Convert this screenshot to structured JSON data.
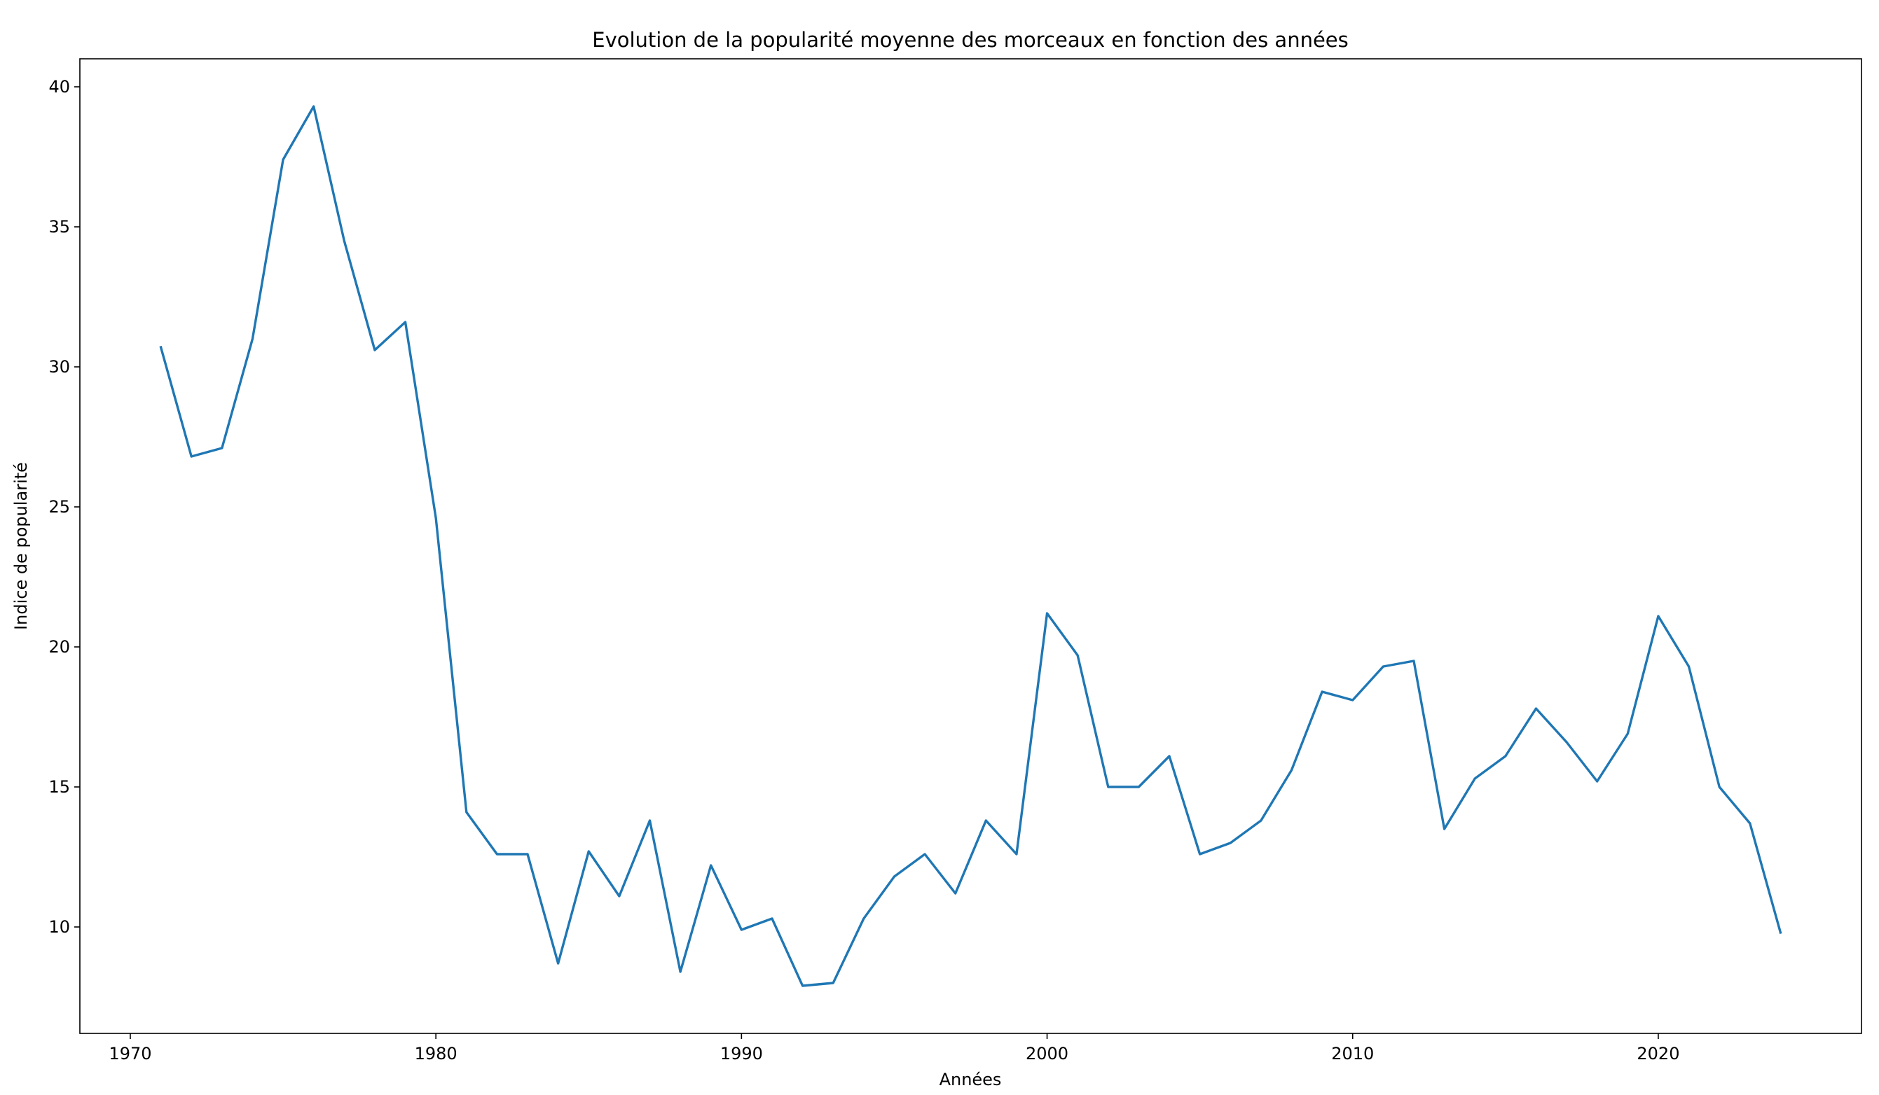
{
  "chart_data": {
    "type": "line",
    "title": "Evolution de la popularité moyenne des morceaux en fonction des années",
    "xlabel": "Années",
    "ylabel": "Indice de popularité",
    "xlim": [
      1968.35,
      2026.65
    ],
    "ylim": [
      6.2,
      41.0
    ],
    "x_ticks": [
      1970,
      1980,
      1990,
      2000,
      2010,
      2020
    ],
    "y_ticks": [
      10,
      15,
      20,
      25,
      30,
      35,
      40
    ],
    "grid": false,
    "legend": "none",
    "series": [
      {
        "color": "#1f77b4",
        "x": [
          1971,
          1972,
          1973,
          1974,
          1975,
          1976,
          1977,
          1978,
          1979,
          1980,
          1981,
          1982,
          1983,
          1984,
          1985,
          1986,
          1987,
          1988,
          1989,
          1990,
          1991,
          1992,
          1993,
          1994,
          1995,
          1996,
          1997,
          1998,
          1999,
          2000,
          2001,
          2002,
          2003,
          2004,
          2005,
          2006,
          2007,
          2008,
          2009,
          2010,
          2011,
          2012,
          2013,
          2014,
          2015,
          2016,
          2017,
          2018,
          2019,
          2020,
          2021,
          2022,
          2023,
          2024
        ],
        "values": [
          30.7,
          26.8,
          27.1,
          31.0,
          37.4,
          39.3,
          34.5,
          30.6,
          31.6,
          24.6,
          14.1,
          12.6,
          12.6,
          8.7,
          12.7,
          11.1,
          13.8,
          8.4,
          12.2,
          9.9,
          10.3,
          7.9,
          8.0,
          10.3,
          11.8,
          12.6,
          11.2,
          13.8,
          12.6,
          21.2,
          19.7,
          15.0,
          15.0,
          16.1,
          12.6,
          13.0,
          13.8,
          15.6,
          18.4,
          18.1,
          19.3,
          19.5,
          13.5,
          15.3,
          16.1,
          17.8,
          16.6,
          15.2,
          16.9,
          21.1,
          19.3,
          15.0,
          13.7,
          9.8
        ]
      }
    ]
  }
}
